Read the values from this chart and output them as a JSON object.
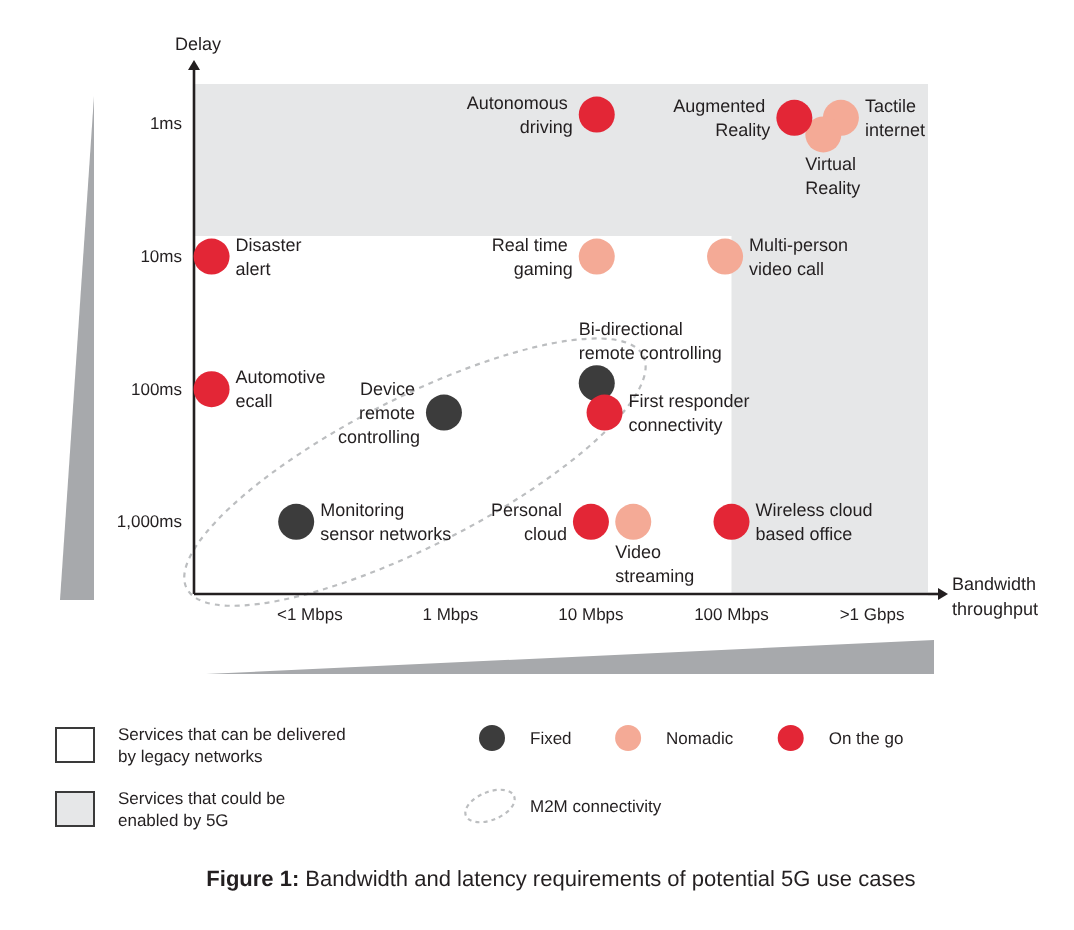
{
  "chart_data": {
    "type": "scatter",
    "title": "Figure 1: Bandwidth and latency requirements of potential 5G use cases",
    "xlabel": "Bandwidth\nthroughput",
    "ylabel": "Delay",
    "log": "xy",
    "xlim": [
      0.015,
      2500
    ],
    "ylim": [
      3500,
      0.5
    ],
    "xticks": [
      {
        "value": 0.1,
        "label": "<1 Mbps"
      },
      {
        "value": 1,
        "label": "1 Mbps"
      },
      {
        "value": 10,
        "label": "10 Mbps"
      },
      {
        "value": 100,
        "label": "100 Mbps"
      },
      {
        "value": 1000,
        "label": ">1 Gbps"
      }
    ],
    "yticks": [
      {
        "value": 1,
        "label": "1ms"
      },
      {
        "value": 10,
        "label": "10ms"
      },
      {
        "value": 100,
        "label": "100ms"
      },
      {
        "value": 1000,
        "label": "1,000ms"
      }
    ],
    "series": [
      {
        "name": "Fixed",
        "color": "#3c3c3c",
        "x": [
          0.08,
          0.9,
          11
        ],
        "values": [
          1000,
          150,
          90
        ]
      },
      {
        "name": "Nomadic",
        "color": "#f4aa96",
        "x": [
          11,
          90,
          600,
          450,
          20
        ],
        "values": [
          10,
          10,
          0.9,
          1.2,
          1000
        ]
      },
      {
        "name": "On the go",
        "color": "#e32636",
        "x": [
          0.02,
          0.02,
          12.5,
          10,
          100,
          11,
          280
        ],
        "values": [
          10,
          100,
          150,
          1000,
          1000,
          0.85,
          0.9
        ]
      }
    ],
    "bands": [
      {
        "axis": "y",
        "from": 0.5,
        "to": 7,
        "color": "#e6e7e8",
        "label": "Services that could be\nenabled by 5G"
      },
      {
        "axis": "x",
        "from": 100,
        "to": 2500,
        "color": "#e6e7e8"
      }
    ],
    "marker": "circle",
    "legend": "bottom",
    "annotations": [
      {
        "text": "Disaster\nalert",
        "x": 0.02,
        "y": 10
      },
      {
        "text": "Automotive\necall",
        "x": 0.02,
        "y": 100
      },
      {
        "text": "Device\nremote\ncontrolling",
        "x": 0.9,
        "y": 150
      },
      {
        "text": "Monitoring\nsensor networks",
        "x": 0.08,
        "y": 1000
      },
      {
        "text": "Bi-directional\nremote controlling",
        "x": 11,
        "y": 90
      },
      {
        "text": "First responder\nconnectivity",
        "x": 12.5,
        "y": 150
      },
      {
        "text": "Personal\ncloud",
        "x": 10,
        "y": 1000
      },
      {
        "text": "Video\nstreaming",
        "x": 20,
        "y": 1000
      },
      {
        "text": "Wireless cloud\nbased office",
        "x": 100,
        "y": 1000
      },
      {
        "text": "Autonomous\ndriving",
        "x": 11,
        "y": 0.85
      },
      {
        "text": "Real time\ngaming",
        "x": 11,
        "y": 10
      },
      {
        "text": "Multi-person\nvideo call",
        "x": 90,
        "y": 10
      },
      {
        "text": "Augmented\nReality",
        "x": 280,
        "y": 0.9
      },
      {
        "text": "Tactile\ninternet",
        "x": 600,
        "y": 0.9
      },
      {
        "text": "Virtual\nReality",
        "x": 450,
        "y": 1.2
      },
      "Services that can be delivered\nby legacy networks",
      "M2M connectivity"
    ]
  }
}
